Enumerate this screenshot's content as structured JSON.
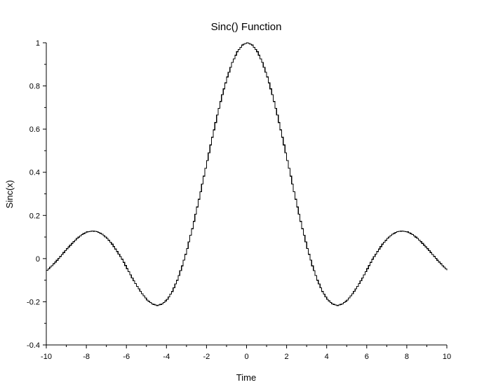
{
  "chart_data": {
    "type": "line",
    "step": true,
    "title": "Sinc() Function",
    "xlabel": "Time",
    "ylabel": "Sinc(x)",
    "xlim": [
      -10,
      10
    ],
    "ylim": [
      -0.4,
      1
    ],
    "xticks": [
      -10,
      -8,
      -6,
      -4,
      -2,
      0,
      2,
      4,
      6,
      8,
      10
    ],
    "yticks": [
      -0.4,
      -0.2,
      0,
      0.2,
      0.4,
      0.6,
      0.8,
      1
    ],
    "xtick_labels": [
      "-10",
      "-8",
      "-6",
      "-4",
      "-2",
      "0",
      "2",
      "4",
      "6",
      "8",
      "10"
    ],
    "ytick_labels": [
      "-0.4",
      "-0.2",
      "0",
      "0.2",
      "0.4",
      "0.6",
      "0.8",
      "1"
    ],
    "grid": false,
    "line_color": "#000000",
    "series": [
      {
        "x": [
          -10,
          -9.75,
          -9.5,
          -9.25,
          -9,
          -8.75,
          -8.5,
          -8.25,
          -8,
          -7.75,
          -7.5,
          -7.25,
          -7,
          -6.75,
          -6.5,
          -6.25,
          -6,
          -5.75,
          -5.5,
          -5.25,
          -5,
          -4.75,
          -4.5,
          -4.25,
          -4,
          -3.75,
          -3.5,
          -3.25,
          -3,
          -2.75,
          -2.5,
          -2.25,
          -2,
          -1.75,
          -1.5,
          -1.25,
          -1,
          -0.75,
          -0.5,
          -0.25,
          0,
          0.25,
          0.5,
          0.75,
          1,
          1.25,
          1.5,
          1.75,
          2,
          2.25,
          2.5,
          2.75,
          3,
          3.25,
          3.5,
          3.75,
          4,
          4.25,
          4.5,
          4.75,
          5,
          5.25,
          5.5,
          5.75,
          6,
          6.25,
          6.5,
          6.75,
          7,
          7.25,
          7.5,
          7.75,
          8,
          8.25,
          8.5,
          8.75,
          9,
          9.25,
          9.5,
          9.75,
          10
        ],
        "values": [
          -0.0544,
          -0.0325,
          -0.0079,
          0.0188,
          0.0458,
          0.0704,
          0.0939,
          0.1112,
          0.1237,
          0.1277,
          0.125,
          0.1137,
          0.0939,
          0.0669,
          0.033,
          -0.0027,
          -0.0466,
          -0.0897,
          -0.1283,
          -0.1629,
          -0.1918,
          -0.2099,
          -0.2172,
          -0.2101,
          -0.1892,
          -0.1526,
          -0.1002,
          -0.0335,
          0.047,
          0.1387,
          0.2394,
          0.3453,
          0.4546,
          0.5622,
          0.665,
          0.7592,
          0.8415,
          0.9089,
          0.9589,
          0.9896,
          1.0,
          0.9896,
          0.9589,
          0.9089,
          0.8415,
          0.7592,
          0.665,
          0.5622,
          0.4546,
          0.3453,
          0.2394,
          0.1387,
          0.047,
          -0.0335,
          -0.1002,
          -0.1526,
          -0.1892,
          -0.2101,
          -0.2172,
          -0.2099,
          -0.1918,
          -0.1629,
          -0.1283,
          -0.0897,
          -0.0466,
          -0.0027,
          0.033,
          0.0669,
          0.0939,
          0.1137,
          0.125,
          0.1277,
          0.1237,
          0.1112,
          0.0939,
          0.0704,
          0.0458,
          0.0188,
          -0.0079,
          -0.0325,
          -0.0544
        ]
      }
    ]
  }
}
